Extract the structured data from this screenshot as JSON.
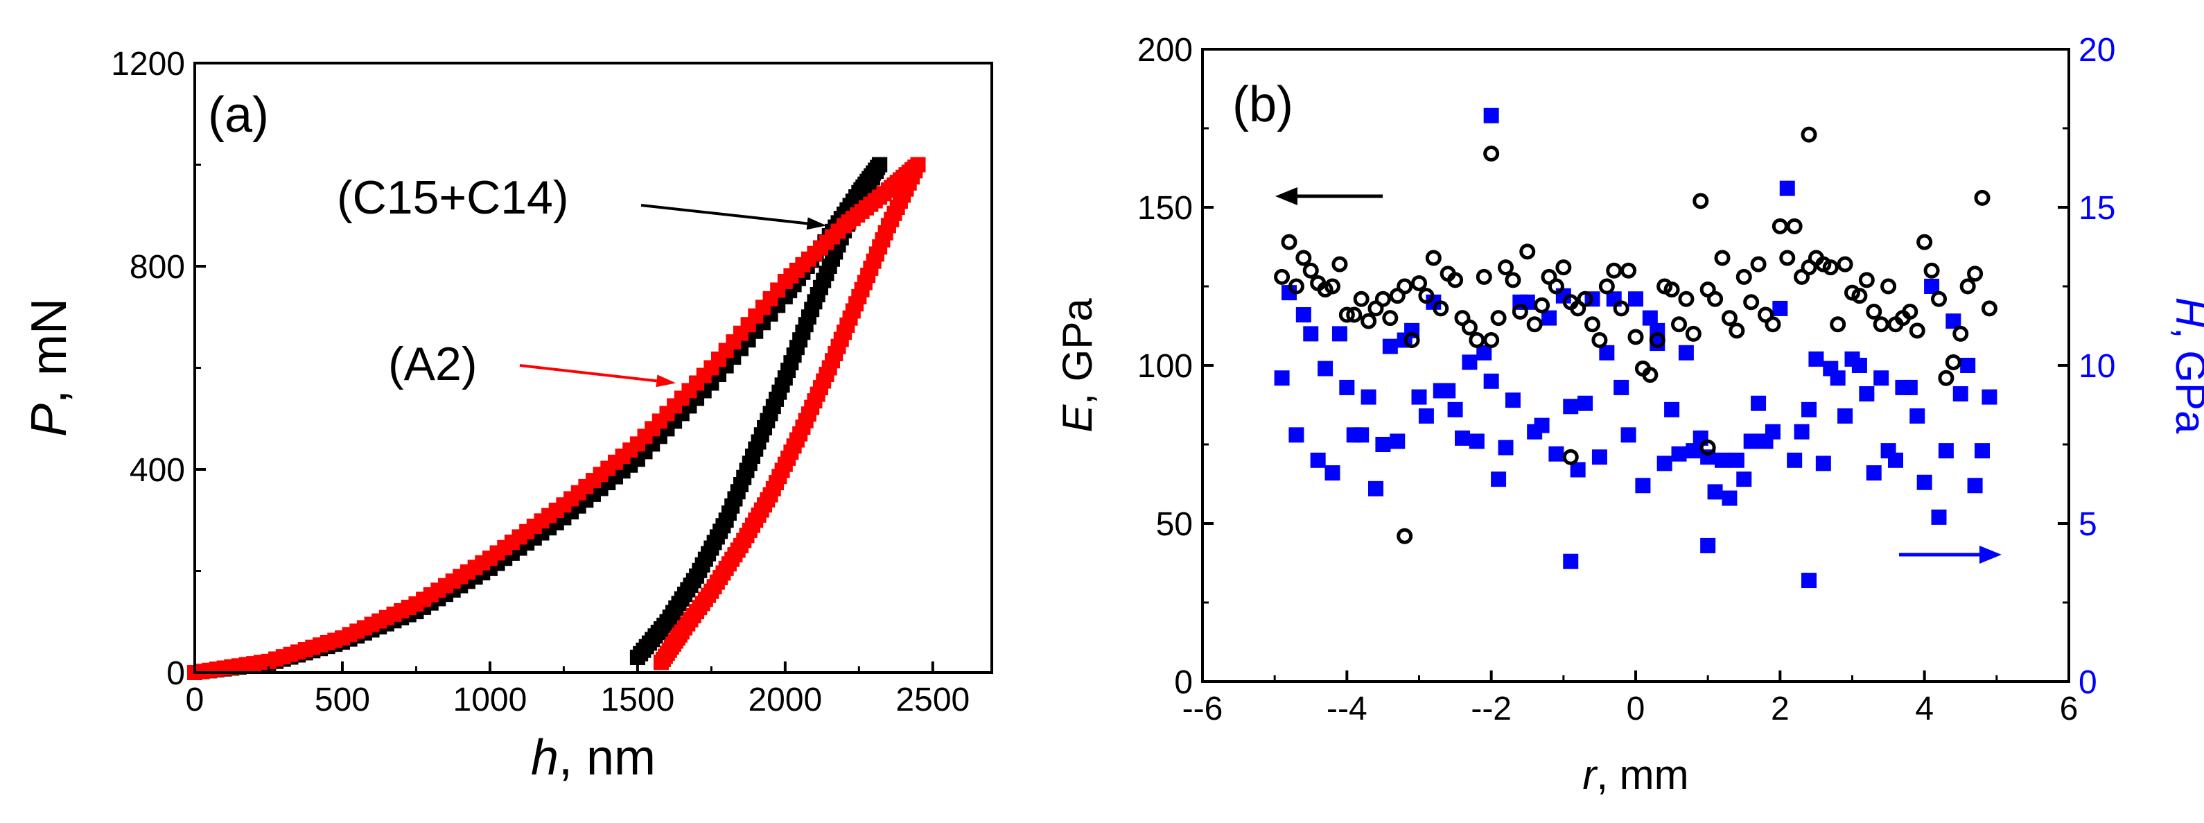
{
  "chart_data": [
    {
      "panel": "a",
      "type": "line",
      "panel_label": "(a)",
      "xlabel_var": "h",
      "xlabel_unit": ", nm",
      "ylabel_var": "P",
      "ylabel_unit": ", mN",
      "xlim": [
        0,
        2700
      ],
      "ylim": [
        0,
        1200
      ],
      "xticks": [
        0,
        500,
        1000,
        1500,
        2000,
        2500
      ],
      "xtick_labels": [
        "0",
        "500",
        "1000",
        "1500",
        "2000",
        "2500"
      ],
      "yticks": [
        0,
        400,
        800,
        1200
      ],
      "ytick_labels": [
        "0",
        "400",
        "800",
        "1200"
      ],
      "series": [
        {
          "name": "(C15+C14)",
          "color": "#000000",
          "loading_x": [
            0,
            250,
            500,
            750,
            1000,
            1250,
            1500,
            1750,
            2000,
            2150,
            2250,
            2320
          ],
          "loading_y": [
            0,
            18,
            60,
            120,
            205,
            305,
            420,
            570,
            740,
            860,
            945,
            1000
          ],
          "unloading_x": [
            2320,
            2200,
            2100,
            2000,
            1900,
            1800,
            1700,
            1600,
            1500
          ],
          "unloading_y": [
            1000,
            870,
            730,
            580,
            440,
            300,
            190,
            100,
            30
          ]
        },
        {
          "name": "(A2)",
          "color": "#ff0000",
          "loading_x": [
            0,
            250,
            500,
            750,
            1000,
            1250,
            1500,
            1750,
            2000,
            2200,
            2350,
            2450
          ],
          "loading_y": [
            0,
            22,
            68,
            135,
            225,
            330,
            450,
            600,
            770,
            880,
            950,
            1000
          ],
          "unloading_x": [
            2450,
            2350,
            2250,
            2150,
            2050,
            1950,
            1850,
            1750,
            1650,
            1580
          ],
          "unloading_y": [
            1000,
            880,
            740,
            600,
            470,
            350,
            250,
            160,
            80,
            20
          ]
        }
      ],
      "annotations": [
        {
          "text": "(C15+C14)",
          "color": "#000000",
          "arrow_to_data": [
            2140,
            880
          ]
        },
        {
          "text": "(A2)",
          "color": "#ff0000",
          "arrow_to_data": [
            1630,
            570
          ]
        }
      ]
    },
    {
      "panel": "b",
      "type": "scatter",
      "panel_label": "(b)",
      "xlabel_var": "r",
      "xlabel_unit": ", mm",
      "ylabel_left_var": "E",
      "ylabel_left_unit": ", GPa",
      "ylabel_right_var": "H",
      "ylabel_right_unit": ", GPa",
      "xlim": [
        -6,
        6
      ],
      "ylim_left": [
        0,
        200
      ],
      "ylim_right": [
        0,
        20
      ],
      "xticks": [
        -6,
        -4,
        -2,
        0,
        2,
        4,
        6
      ],
      "xtick_labels": [
        "--6",
        "--4",
        "--2",
        "0",
        "2",
        "4",
        "6"
      ],
      "yticks_left": [
        0,
        50,
        100,
        150,
        200
      ],
      "ytick_labels_left": [
        "0",
        "50",
        "100",
        "150",
        "200"
      ],
      "yticks_right": [
        0,
        5,
        10,
        15,
        20
      ],
      "ytick_labels_right": [
        "0",
        "5",
        "10",
        "15",
        "20"
      ],
      "series": [
        {
          "name": "E",
          "axis": "left",
          "marker": "open-circle",
          "color": "#000000",
          "x": [
            -4.9,
            -4.8,
            -4.7,
            -4.6,
            -4.5,
            -4.4,
            -4.3,
            -4.2,
            -4.1,
            -4.0,
            -3.9,
            -3.8,
            -3.7,
            -3.6,
            -3.5,
            -3.4,
            -3.3,
            -3.2,
            -3.1,
            -3.0,
            -2.9,
            -2.8,
            -2.7,
            -2.6,
            -2.5,
            -2.4,
            -2.3,
            -2.2,
            -2.1,
            -2.0,
            -1.9,
            -1.8,
            -1.7,
            -1.6,
            -1.5,
            -1.4,
            -1.3,
            -1.2,
            -1.1,
            -1.0,
            -0.9,
            -0.8,
            -0.7,
            -0.6,
            -0.5,
            -0.4,
            -0.3,
            -0.2,
            -0.1,
            0.0,
            0.1,
            0.2,
            0.3,
            0.4,
            0.5,
            0.6,
            0.7,
            0.8,
            0.9,
            1.0,
            1.1,
            1.2,
            1.3,
            1.4,
            1.5,
            1.6,
            1.7,
            1.8,
            1.9,
            2.0,
            2.1,
            2.2,
            2.3,
            2.4,
            2.5,
            2.6,
            2.7,
            2.8,
            2.9,
            3.0,
            3.1,
            3.2,
            3.3,
            3.4,
            3.5,
            3.6,
            3.7,
            3.8,
            3.9,
            4.0,
            4.1,
            4.2,
            4.3,
            4.4,
            4.5,
            4.6,
            4.7,
            4.8,
            4.9,
            -0.9,
            -2.0,
            1.0,
            2.4,
            -3.2
          ],
          "y": [
            128,
            139,
            125,
            134,
            130,
            126,
            124,
            125,
            132,
            116,
            116,
            121,
            114,
            118,
            121,
            115,
            122,
            125,
            108,
            126,
            122,
            134,
            118,
            129,
            127,
            115,
            112,
            108,
            128,
            108,
            115,
            131,
            127,
            117,
            136,
            113,
            119,
            128,
            125,
            131,
            120,
            118,
            121,
            113,
            108,
            125,
            130,
            118,
            130,
            109,
            99,
            97,
            108,
            125,
            124,
            113,
            121,
            110,
            152,
            124,
            121,
            134,
            115,
            111,
            128,
            120,
            132,
            116,
            113,
            144,
            134,
            144,
            128,
            131,
            134,
            132,
            131,
            113,
            132,
            123,
            122,
            127,
            117,
            113,
            125,
            113,
            115,
            117,
            111,
            139,
            130,
            121,
            96,
            101,
            110,
            125,
            129,
            153,
            118,
            71,
            167,
            74,
            173,
            46
          ]
        },
        {
          "name": "H",
          "axis": "right",
          "marker": "filled-square",
          "color": "#0000ff",
          "x": [
            -4.9,
            -4.8,
            -4.7,
            -4.6,
            -4.5,
            -4.4,
            -4.3,
            -4.2,
            -4.1,
            -4.0,
            -3.9,
            -3.8,
            -3.7,
            -3.6,
            -3.5,
            -3.4,
            -3.3,
            -3.2,
            -3.1,
            -3.0,
            -2.9,
            -2.8,
            -2.7,
            -2.6,
            -2.5,
            -2.4,
            -2.3,
            -2.2,
            -2.1,
            -2.0,
            -1.9,
            -1.8,
            -1.7,
            -1.6,
            -1.5,
            -1.4,
            -1.3,
            -1.2,
            -1.1,
            -1.0,
            -0.9,
            -0.8,
            -0.7,
            -0.6,
            -0.5,
            -0.4,
            -0.3,
            -0.2,
            -0.1,
            0.0,
            0.1,
            0.2,
            0.3,
            0.4,
            0.5,
            0.6,
            0.7,
            0.8,
            0.9,
            1.0,
            1.1,
            1.2,
            1.3,
            1.4,
            1.5,
            1.6,
            1.7,
            1.8,
            1.9,
            2.0,
            2.1,
            2.2,
            2.3,
            2.4,
            2.5,
            2.6,
            2.7,
            2.8,
            2.9,
            3.0,
            3.1,
            3.2,
            3.3,
            3.4,
            3.5,
            3.6,
            3.7,
            3.8,
            3.9,
            4.0,
            4.1,
            4.2,
            4.3,
            4.4,
            4.5,
            4.6,
            4.7,
            4.8,
            4.9,
            -2.0,
            2.4,
            -0.9,
            1.0,
            0.3
          ],
          "y": [
            9.6,
            12.3,
            7.8,
            11.6,
            11.0,
            7.0,
            9.9,
            6.6,
            11.0,
            9.3,
            7.8,
            7.8,
            9.0,
            6.1,
            7.5,
            10.6,
            7.6,
            10.8,
            11.1,
            9.0,
            8.4,
            12.0,
            9.2,
            9.2,
            8.6,
            7.7,
            10.1,
            7.6,
            10.4,
            17.9,
            6.4,
            7.4,
            8.9,
            12.0,
            12.0,
            7.9,
            8.1,
            11.5,
            7.2,
            12.2,
            8.7,
            6.7,
            8.8,
            12.1,
            7.1,
            10.4,
            12.1,
            9.3,
            7.8,
            12.1,
            6.2,
            11.5,
            11.1,
            6.9,
            8.6,
            7.2,
            10.4,
            7.3,
            7.7,
            7.1,
            6.0,
            7.0,
            5.8,
            7.0,
            6.4,
            7.6,
            8.8,
            7.6,
            7.9,
            11.8,
            15.6,
            7.0,
            7.9,
            8.6,
            10.2,
            6.9,
            9.9,
            9.6,
            8.4,
            10.2,
            10.0,
            9.1,
            6.6,
            9.6,
            7.3,
            7.0,
            9.3,
            9.3,
            8.4,
            6.3,
            12.5,
            5.2,
            7.3,
            11.4,
            9.1,
            10.0,
            6.2,
            7.3,
            9.0,
            9.5,
            3.2,
            3.8,
            4.3,
            10.7
          ]
        }
      ],
      "annotations": [
        {
          "text": "",
          "type": "arrow-left",
          "color": "#000000",
          "meaning": "E series refers to left axis"
        },
        {
          "text": "",
          "type": "arrow-right",
          "color": "#0000ff",
          "meaning": "H series refers to right axis"
        }
      ]
    }
  ]
}
